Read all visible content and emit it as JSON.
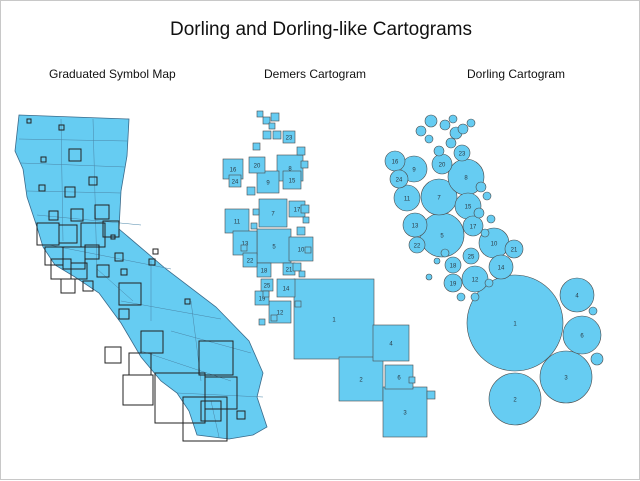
{
  "title": "Dorling and Dorling-like Cartograms",
  "panels": [
    {
      "id": "graduated",
      "subtitle": "Graduated Symbol Map"
    },
    {
      "id": "demers",
      "subtitle": "Demers Cartogram"
    },
    {
      "id": "dorling",
      "subtitle": "Dorling Cartogram"
    }
  ],
  "colors": {
    "fill": "#66ccf2",
    "stroke": "#4a4a4a",
    "symbol": "#222222",
    "label": "#2a3a44"
  },
  "demers_labels": [
    "1",
    "2",
    "3",
    "4",
    "5",
    "6",
    "7",
    "8",
    "9",
    "10",
    "11",
    "12",
    "13",
    "14",
    "15",
    "16",
    "17",
    "18",
    "19",
    "20",
    "21",
    "22",
    "23",
    "24",
    "25"
  ],
  "dorling_labels": [
    "1",
    "2",
    "3",
    "4",
    "5",
    "6",
    "7",
    "8",
    "9",
    "10",
    "11",
    "12",
    "13",
    "14",
    "15",
    "16",
    "17",
    "18",
    "19",
    "20",
    "21",
    "22",
    "23",
    "24",
    "25"
  ]
}
